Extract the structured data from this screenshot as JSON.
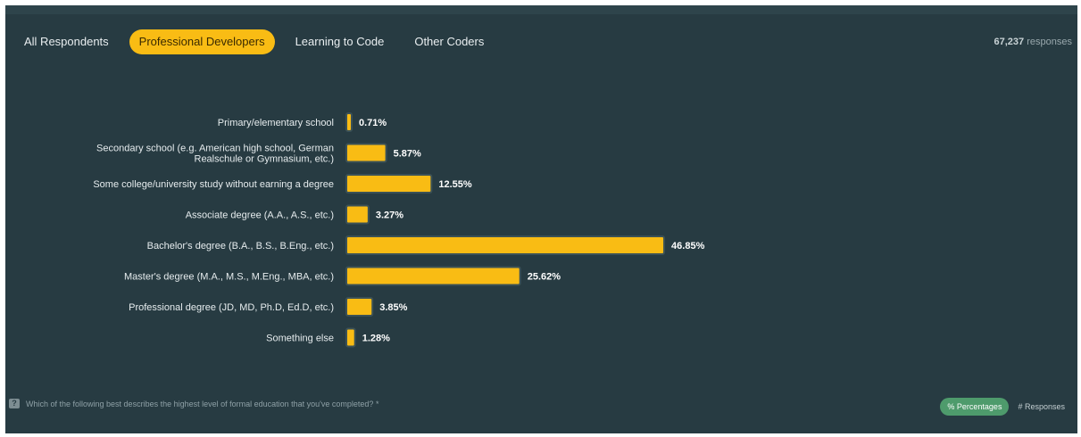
{
  "tabs": [
    {
      "label": "All Respondents",
      "active": false
    },
    {
      "label": "Professional Developers",
      "active": true
    },
    {
      "label": "Learning to Code",
      "active": false
    },
    {
      "label": "Other Coders",
      "active": false
    }
  ],
  "responses": {
    "count": "67,237",
    "suffix": "responses"
  },
  "question": {
    "icon": "question-icon",
    "text": "Which of the following best describes the highest level of formal education that you've completed? *"
  },
  "toggle": {
    "percent_label": "% Percentages",
    "responses_label": "# Responses"
  },
  "colors": {
    "bar": "#f9bc14",
    "bar_stroke": "#3b5156",
    "background": "#273b42",
    "active_tab": "#f9bc14",
    "toggle_active": "#4e9b6c"
  },
  "chart_data": {
    "type": "bar",
    "orientation": "horizontal",
    "categories": [
      [
        "Primary/elementary school"
      ],
      [
        "Secondary school (e.g. American high school, German",
        "Realschule or Gymnasium, etc.)"
      ],
      [
        "Some college/university study without earning a degree"
      ],
      [
        "Associate degree (A.A., A.S., etc.)"
      ],
      [
        "Bachelor's degree (B.A., B.S., B.Eng., etc.)"
      ],
      [
        "Master's degree (M.A., M.S., M.Eng., MBA, etc.)"
      ],
      [
        "Professional degree (JD, MD, Ph.D, Ed.D, etc.)"
      ],
      [
        "Something else"
      ]
    ],
    "values": [
      0.71,
      5.87,
      12.55,
      3.27,
      46.85,
      25.62,
      3.85,
      1.28
    ],
    "value_labels": [
      "0.71%",
      "5.87%",
      "12.55%",
      "3.27%",
      "46.85%",
      "25.62%",
      "3.85%",
      "1.28%"
    ],
    "unit": "%",
    "title": "",
    "xlabel": "",
    "ylabel": "",
    "grid": false
  }
}
